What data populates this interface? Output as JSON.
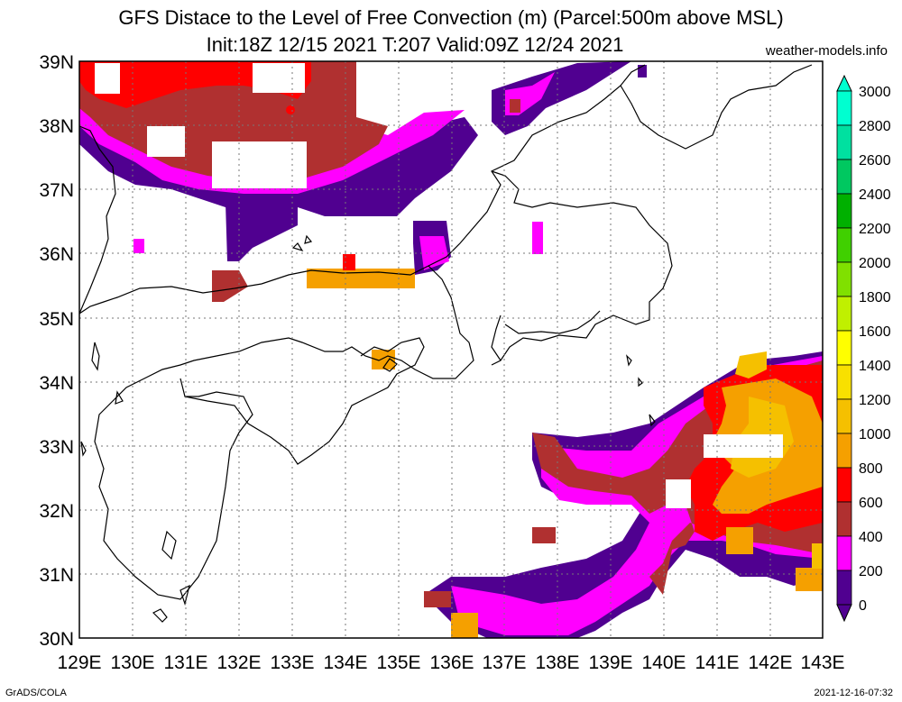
{
  "title_line1": "GFS Distace to the Level of Free Convection (m) (Parcel:500m above MSL)",
  "title_line2": "Init:18Z 12/15 2021 T:207 Valid:09Z 12/24 2021",
  "site": "weather-models.info",
  "footer_left": "GrADS/COLA",
  "footer_right": "2021-12-16-07:32",
  "lon_labels": [
    "129E",
    "130E",
    "131E",
    "132E",
    "133E",
    "134E",
    "135E",
    "136E",
    "137E",
    "138E",
    "139E",
    "140E",
    "141E",
    "142E",
    "143E"
  ],
  "lat_labels": [
    "39N",
    "38N",
    "37N",
    "36N",
    "35N",
    "34N",
    "33N",
    "32N",
    "31N",
    "30N"
  ],
  "colorbar": {
    "levels": [
      "3000",
      "2800",
      "2600",
      "2400",
      "2200",
      "2000",
      "1800",
      "1600",
      "1400",
      "1200",
      "1000",
      "800",
      "600",
      "400",
      "200",
      "0"
    ],
    "colors": [
      "#00ffd0",
      "#00e0a0",
      "#00c860",
      "#00b000",
      "#40d000",
      "#80e000",
      "#c0f000",
      "#ffff00",
      "#f8e000",
      "#f5c000",
      "#f5a000",
      "#ff0000",
      "#b03030",
      "#ff00ff",
      "#500090",
      "#a0a0a0"
    ]
  },
  "palette": {
    "purple": "#500090",
    "magenta": "#ff00ff",
    "brown": "#b03030",
    "red": "#ff0000",
    "orange": "#f5a000",
    "gold": "#f5c000",
    "cyan_top": "#00ffd0"
  }
}
